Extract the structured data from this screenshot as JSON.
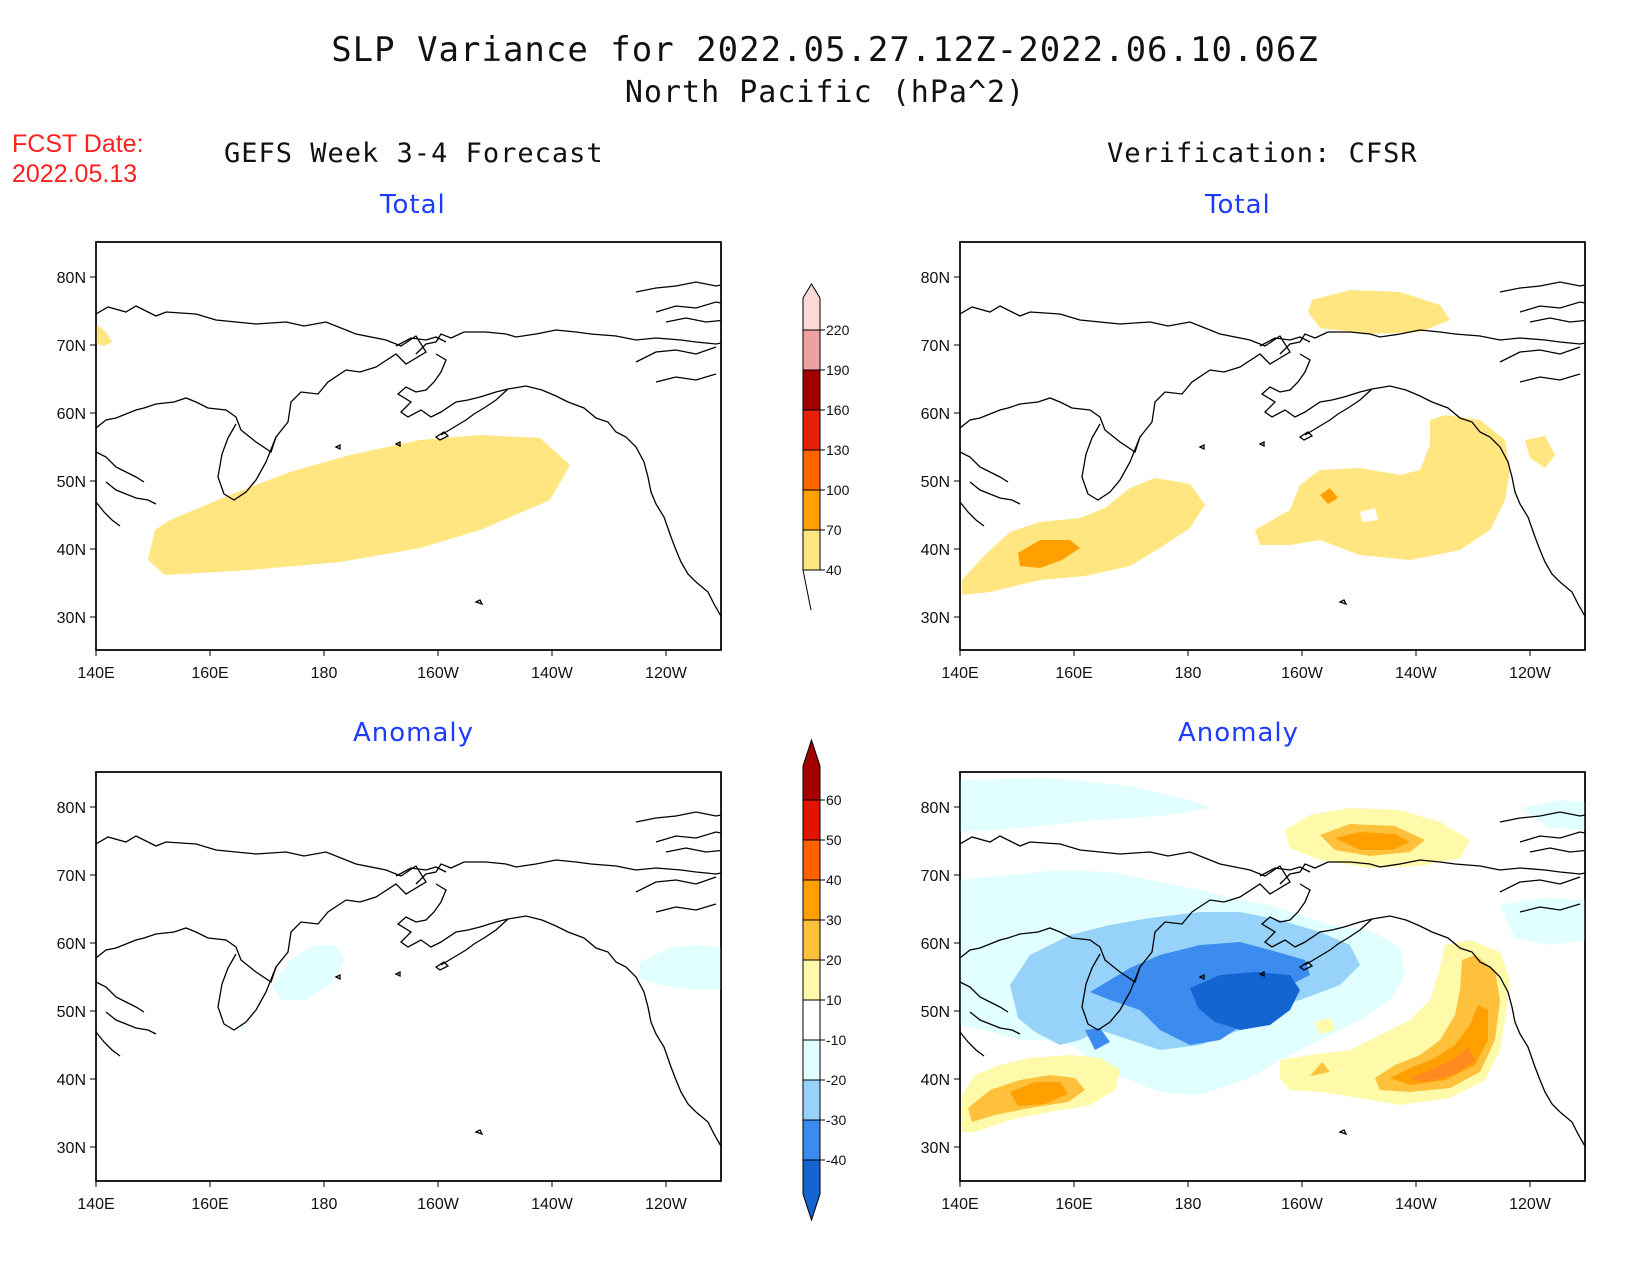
{
  "header": {
    "title_line1": "SLP Variance for 2022.05.27.12Z-2022.06.10.06Z",
    "title_line2": "North Pacific (hPa^2)",
    "fcst_label": "FCST Date:",
    "fcst_date": "2022.05.13"
  },
  "columns": {
    "left": "GEFS Week 3-4 Forecast",
    "right": "Verification: CFSR"
  },
  "panels": {
    "top_left": "Total",
    "top_right": "Total",
    "bottom_left": "Anomaly",
    "bottom_right": "Anomaly"
  },
  "map_axes": {
    "lon_labels": [
      "140E",
      "160E",
      "180",
      "160W",
      "140W",
      "120W"
    ],
    "lat_labels": [
      "80N",
      "70N",
      "60N",
      "50N",
      "40N",
      "30N"
    ]
  },
  "colorbars": {
    "total": {
      "levels": [
        "40",
        "70",
        "100",
        "130",
        "160",
        "190",
        "220"
      ],
      "colors": [
        "#ffe680",
        "#ffa000",
        "#ff6400",
        "#e61e0a",
        "#a00000",
        "#f0a0a0",
        "#fdd8d8"
      ]
    },
    "anomaly": {
      "levels": [
        "-40",
        "-30",
        "-20",
        "-10",
        "10",
        "20",
        "30",
        "40",
        "50",
        "60"
      ],
      "colors": [
        "#1464d2",
        "#3c8cf0",
        "#96d2fa",
        "#e1ffff",
        "#ffffff",
        "#fffaaa",
        "#ffc03c",
        "#ffa000",
        "#ff6000",
        "#e11400",
        "#a50000"
      ]
    }
  },
  "palette": {
    "title_red": "#ff2020",
    "panel_title_blue": "#1e3cff"
  }
}
